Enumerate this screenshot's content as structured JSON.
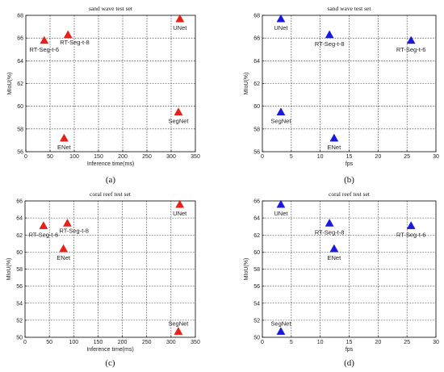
{
  "chart_data": [
    {
      "type": "scatter",
      "panel_label": "(a)",
      "title": "sand wave test set",
      "xlabel": "Inference time(ms)",
      "ylabel": "MIoU(%)",
      "xlim": [
        0,
        350
      ],
      "ylim": [
        56,
        68
      ],
      "xticks": [
        "0",
        "50",
        "100",
        "150",
        "200",
        "250",
        "300",
        "350"
      ],
      "yticks": [
        "56",
        "58",
        "60",
        "62",
        "64",
        "66",
        "68"
      ],
      "grid": true,
      "marker_color": "#e8201a",
      "points": [
        {
          "label": "RT-Seg-t-6",
          "x": 38,
          "y": 65.8,
          "anchor": "below"
        },
        {
          "label": "RT-Seg-t-8",
          "x": 87,
          "y": 66.3,
          "anchor": "below-right"
        },
        {
          "label": "UNet",
          "x": 318,
          "y": 67.7,
          "anchor": "below"
        },
        {
          "label": "SegNet",
          "x": 315,
          "y": 59.5,
          "anchor": "below"
        },
        {
          "label": "ENet",
          "x": 79,
          "y": 57.2,
          "anchor": "below"
        }
      ]
    },
    {
      "type": "scatter",
      "panel_label": "(b)",
      "title": "sand wave test set",
      "xlabel": "fps",
      "ylabel": "MIoU(%)",
      "xlim": [
        0,
        30
      ],
      "ylim": [
        56,
        68
      ],
      "xticks": [
        "0",
        "5",
        "10",
        "15",
        "20",
        "25",
        "30"
      ],
      "yticks": [
        "56",
        "58",
        "60",
        "62",
        "64",
        "66",
        "68"
      ],
      "grid": true,
      "marker_color": "#1a1adc",
      "points": [
        {
          "label": "UNet",
          "x": 3.2,
          "y": 67.7,
          "anchor": "below"
        },
        {
          "label": "RT-Seg-t-8",
          "x": 11.6,
          "y": 66.3,
          "anchor": "below"
        },
        {
          "label": "RT-Seg-t-6",
          "x": 25.7,
          "y": 65.8,
          "anchor": "below"
        },
        {
          "label": "SegNet",
          "x": 3.2,
          "y": 59.5,
          "anchor": "below"
        },
        {
          "label": "ENet",
          "x": 12.4,
          "y": 57.2,
          "anchor": "below"
        }
      ]
    },
    {
      "type": "scatter",
      "panel_label": "(c)",
      "title": "coral reef test set",
      "xlabel": "Inference time(ms)",
      "ylabel": "MIoU(%)",
      "xlim": [
        0,
        350
      ],
      "ylim": [
        50,
        66
      ],
      "xticks": [
        "0",
        "50",
        "100",
        "150",
        "200",
        "250",
        "300",
        "350"
      ],
      "yticks": [
        "50",
        "52",
        "54",
        "56",
        "58",
        "60",
        "62",
        "64",
        "66"
      ],
      "grid": true,
      "marker_color": "#e8201a",
      "points": [
        {
          "label": "UNet",
          "x": 318,
          "y": 65.6,
          "anchor": "below"
        },
        {
          "label": "RT-Seg-t-6",
          "x": 38,
          "y": 63.1,
          "anchor": "below"
        },
        {
          "label": "RT-Seg-t-8",
          "x": 87,
          "y": 63.4,
          "anchor": "below-right"
        },
        {
          "label": "ENet",
          "x": 79,
          "y": 60.4,
          "anchor": "below"
        },
        {
          "label": "SegNet",
          "x": 315,
          "y": 50.7,
          "anchor": "above"
        }
      ]
    },
    {
      "type": "scatter",
      "panel_label": "(d)",
      "title": "coral reef test set",
      "xlabel": "fps",
      "ylabel": "MIoU(%)",
      "xlim": [
        0,
        30
      ],
      "ylim": [
        50,
        66
      ],
      "xticks": [
        "0",
        "5",
        "10",
        "15",
        "20",
        "25",
        "30"
      ],
      "yticks": [
        "50",
        "52",
        "54",
        "56",
        "58",
        "60",
        "62",
        "64",
        "66"
      ],
      "grid": true,
      "marker_color": "#1a1adc",
      "points": [
        {
          "label": "UNet",
          "x": 3.2,
          "y": 65.6,
          "anchor": "below"
        },
        {
          "label": "RT-Seg-t-8",
          "x": 11.6,
          "y": 63.4,
          "anchor": "below"
        },
        {
          "label": "RT-Seg-t-6",
          "x": 25.7,
          "y": 63.1,
          "anchor": "below"
        },
        {
          "label": "ENet",
          "x": 12.4,
          "y": 60.4,
          "anchor": "below"
        },
        {
          "label": "SegNet",
          "x": 3.2,
          "y": 50.7,
          "anchor": "above"
        }
      ]
    }
  ]
}
